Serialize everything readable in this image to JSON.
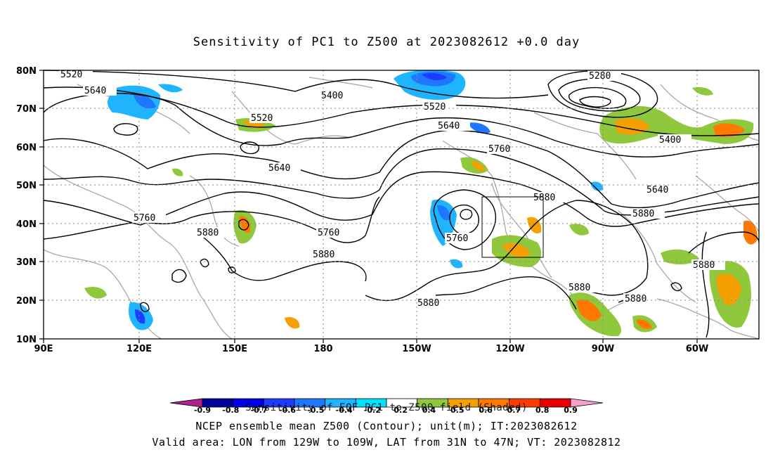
{
  "title": "Sensitivity of PC1 to Z500 at 2023082612 +0.0 day",
  "axes": {
    "lat_labels": [
      "80N",
      "70N",
      "60N",
      "50N",
      "40N",
      "30N",
      "20N",
      "10N"
    ],
    "lon_labels": [
      "90E",
      "120E",
      "150E",
      "180",
      "150W",
      "120W",
      "90W",
      "60W"
    ]
  },
  "contours": {
    "color": "#000000",
    "labels": [
      "5520",
      "5640",
      "5400",
      "5520",
      "5280",
      "5520",
      "5640",
      "5760",
      "5400",
      "5640",
      "5760",
      "5640",
      "5880",
      "5760",
      "5880",
      "5760",
      "5880",
      "5880",
      "5880",
      "5880",
      "5880"
    ]
  },
  "colorbar": {
    "ticks": [
      "-0.9",
      "-0.8",
      "-0.7",
      "-0.6",
      "-0.5",
      "-0.4",
      "-0.2",
      "0.2",
      "0.4",
      "0.5",
      "0.6",
      "0.7",
      "0.8",
      "0.9"
    ],
    "colors": [
      "#b0208f",
      "#00009b",
      "#0000e6",
      "#1e3cff",
      "#1e78ff",
      "#1eb4ff",
      "#00e1ff",
      "#ffffff",
      "#8fc83c",
      "#f5a000",
      "#ff7800",
      "#ff3c00",
      "#e60000",
      "#f5a0c8"
    ]
  },
  "footer": {
    "line1": "Sensitivity of EOF PC1 to Z500 field (Shaded)",
    "line2": "NCEP ensemble mean Z500 (Contour); unit(m); IT:2023082612",
    "line3": "Valid area: LON from 129W to 109W, LAT from 31N to 47N; VT: 2023082812"
  }
}
